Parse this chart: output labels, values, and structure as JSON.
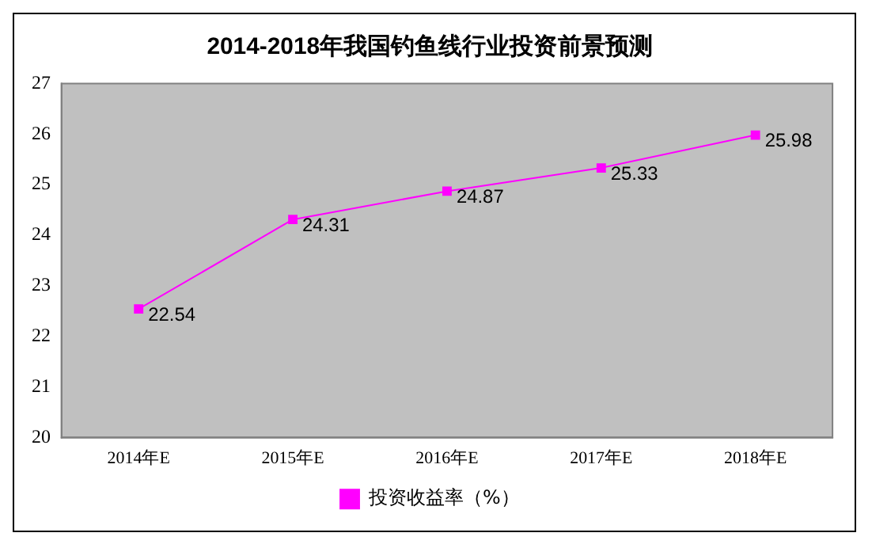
{
  "chart_data": {
    "type": "line",
    "title": "2014-2018年我国钓鱼线行业投资前景预测",
    "categories": [
      "2014年E",
      "2015年E",
      "2016年E",
      "2017年E",
      "2018年E"
    ],
    "series": [
      {
        "name": "投资收益率（%）",
        "color": "#ff00ff",
        "values": [
          22.54,
          24.31,
          24.87,
          25.33,
          25.98
        ]
      }
    ],
    "ylim": [
      20,
      27
    ],
    "yticks": [
      20,
      21,
      22,
      23,
      24,
      25,
      26,
      27
    ],
    "data_labels": true,
    "legend": "bottom",
    "marker": "square",
    "grid": false
  }
}
